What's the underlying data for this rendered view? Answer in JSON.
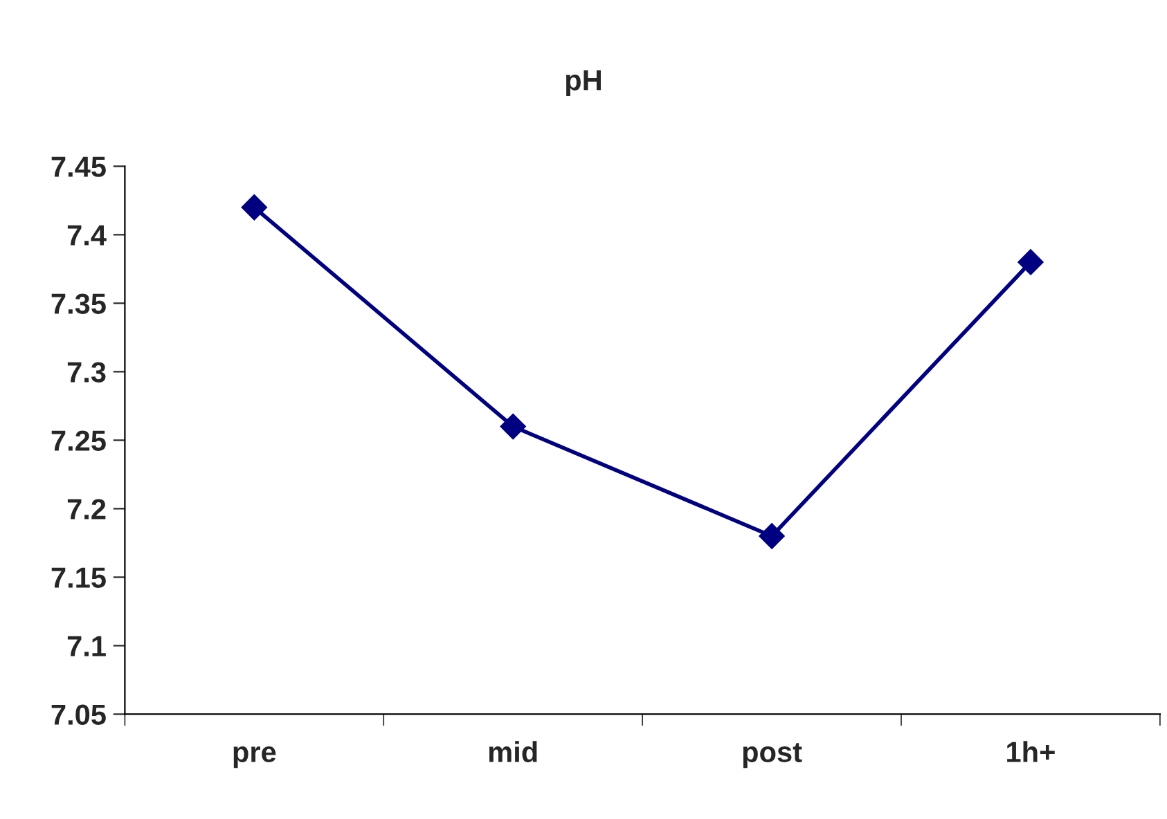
{
  "chart_data": {
    "type": "line",
    "title": "pH",
    "categories": [
      "pre",
      "mid",
      "post",
      "1h+"
    ],
    "series": [
      {
        "color": "#000080",
        "values": [
          7.42,
          7.26,
          7.18,
          7.38
        ]
      }
    ],
    "ylim": [
      7.05,
      7.45
    ],
    "yticks": [
      7.05,
      7.1,
      7.15,
      7.2,
      7.25,
      7.3,
      7.35,
      7.4,
      7.45
    ],
    "marker": "diamond",
    "line_style": "solid",
    "grid": false
  }
}
